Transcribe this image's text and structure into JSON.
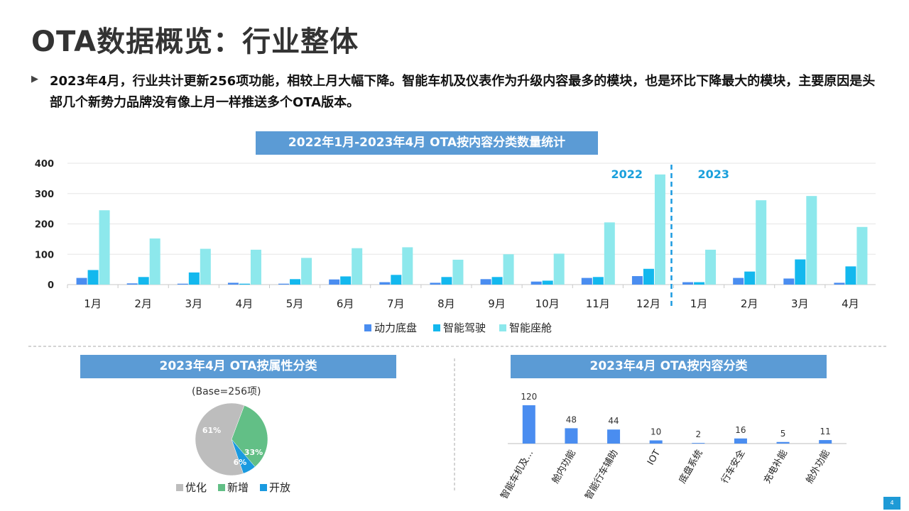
{
  "page": {
    "title": "OTA数据概览：行业整体",
    "summary": "2023年4月，行业共计更新256项功能，相较上月大幅下降。智能车机及仪表作为升级内容最多的模块，也是环比下降最大的模块，主要原因是头部几个新势力品牌没有像上月一样推送多个OTA版本。",
    "bullet_icon": "triangle-right-icon",
    "page_number": "4"
  },
  "colors": {
    "banner": "#5b9bd5",
    "chassis": "#4a8df0",
    "adas": "#13b8ee",
    "cockpit": "#8de8ec",
    "optimize": "#bdbdbd",
    "add": "#62bf86",
    "open": "#1a9ae0",
    "divider": "#1a9ae0"
  },
  "chart_data": [
    {
      "type": "bar",
      "title": "2022年1月-2023年4月 OTA按内容分类数量统计",
      "categories": [
        "1月",
        "2月",
        "3月",
        "4月",
        "5月",
        "6月",
        "7月",
        "8月",
        "9月",
        "10月",
        "11月",
        "12月",
        "1月",
        "2月",
        "3月",
        "4月"
      ],
      "series": [
        {
          "name": "动力底盘",
          "values": [
            22,
            4,
            3,
            6,
            3,
            17,
            8,
            6,
            18,
            10,
            22,
            28,
            8,
            22,
            20,
            6
          ]
        },
        {
          "name": "智能驾驶",
          "values": [
            48,
            25,
            40,
            3,
            18,
            27,
            32,
            25,
            25,
            13,
            25,
            52,
            8,
            43,
            83,
            60
          ]
        },
        {
          "name": "智能座舱",
          "values": [
            245,
            152,
            118,
            115,
            88,
            120,
            123,
            82,
            100,
            102,
            205,
            363,
            115,
            278,
            292,
            190
          ]
        }
      ],
      "ylim": [
        0,
        400
      ],
      "yticks": [
        0,
        100,
        200,
        300,
        400
      ],
      "grid": true,
      "legend": "bottom",
      "year_labels": [
        "2022",
        "2023"
      ]
    },
    {
      "type": "pie",
      "title": "2023年4月 OTA按属性分类",
      "subtitle": "(Base=256项)",
      "slices": [
        {
          "label": "优化",
          "value": 61,
          "text": "61%"
        },
        {
          "label": "新增",
          "value": 33,
          "text": "33%"
        },
        {
          "label": "开放",
          "value": 6,
          "text": "6%"
        }
      ],
      "legend": "bottom"
    },
    {
      "type": "bar",
      "title": "2023年4月 OTA按内容分类",
      "categories": [
        "智能车机及...",
        "舱内功能",
        "智能行车辅助",
        "IOT",
        "底盘系统",
        "行车安全",
        "充电补能",
        "舱外功能"
      ],
      "values": [
        120,
        48,
        44,
        10,
        2,
        16,
        5,
        11
      ],
      "ylim": [
        0,
        130
      ]
    }
  ]
}
